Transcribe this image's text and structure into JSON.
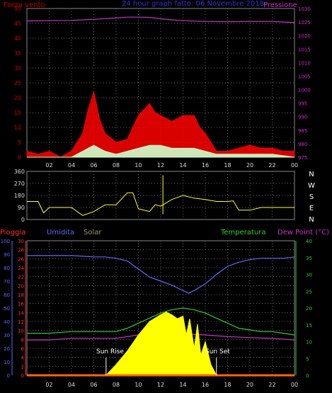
{
  "chart_data": [
    {
      "type": "line",
      "title": "24 hour graph fatto: 06 Novembre 2018",
      "left_axis_label": "Forza vento",
      "right_axis_label": "Pressione",
      "x_ticks": [
        "02",
        "04",
        "06",
        "08",
        "10",
        "12",
        "14",
        "16",
        "18",
        "20",
        "22",
        "00"
      ],
      "y_left_ticks": [
        0,
        5,
        10,
        15,
        20,
        25,
        30,
        35,
        40,
        45,
        50
      ],
      "y_left_range": [
        0,
        50
      ],
      "y_right_ticks": [
        975,
        980,
        985,
        990,
        995,
        1000,
        1005,
        1010,
        1015,
        1020,
        1025,
        1030
      ],
      "y_right_range": [
        975,
        1030
      ],
      "series": [
        {
          "name": "Pressione",
          "axis": "right",
          "color": "#cc33cc",
          "x": [
            0,
            2,
            4,
            6,
            8,
            9,
            10,
            11,
            12,
            13,
            14,
            16,
            18,
            20,
            22,
            24
          ],
          "values": [
            1025.4,
            1025.5,
            1025.6,
            1026.0,
            1026.5,
            1026.8,
            1026.8,
            1026.7,
            1026.2,
            1025.8,
            1025.5,
            1025.2,
            1025.1,
            1025.2,
            1025.2,
            1024.8
          ]
        },
        {
          "name": "Raffica",
          "axis": "left",
          "color": "#ff0000",
          "x": [
            0,
            1,
            2,
            3,
            4,
            5,
            5.5,
            6,
            6.5,
            7,
            8,
            9,
            10,
            10.5,
            11,
            11.5,
            12,
            13,
            14,
            15,
            15.5,
            16,
            17,
            18,
            19,
            20,
            21,
            22,
            23,
            24
          ],
          "values": [
            2,
            1,
            2,
            0,
            2,
            8,
            16,
            22,
            13,
            8,
            5,
            6,
            14,
            16,
            18,
            15,
            14,
            12,
            14,
            14,
            10,
            8,
            2,
            2,
            3,
            4,
            3,
            3,
            2,
            2
          ]
        },
        {
          "name": "Vento medio",
          "axis": "left",
          "color": "#ccffcc",
          "x": [
            0,
            2,
            4,
            5,
            6,
            6.5,
            7,
            8,
            9,
            10,
            11,
            12,
            13,
            14,
            15,
            16,
            17,
            18,
            20,
            22,
            24
          ],
          "values": [
            0,
            0,
            0,
            2,
            4,
            3,
            2,
            1,
            2,
            3,
            4,
            4,
            3,
            3,
            3,
            2,
            1,
            1,
            1,
            1,
            0
          ]
        }
      ]
    },
    {
      "type": "line",
      "title": "Direzione vento",
      "y_ticks": [
        0,
        90,
        180,
        270,
        360
      ],
      "y_range": [
        0,
        360
      ],
      "cardinal_labels": [
        "N",
        "W",
        "S",
        "E",
        "N"
      ],
      "x_ticks": [
        "02",
        "04",
        "06",
        "08",
        "10",
        "12",
        "14",
        "16",
        "18",
        "20",
        "22",
        "00"
      ],
      "series": [
        {
          "name": "Direzione",
          "color": "#ffff33",
          "x": [
            0,
            1,
            1.5,
            2,
            3,
            4,
            5,
            6,
            7,
            7.5,
            8,
            9,
            9.5,
            10,
            11,
            11.5,
            12,
            13,
            14,
            15,
            16,
            17,
            18,
            18.5,
            19,
            20,
            21,
            22,
            23,
            24
          ],
          "values": [
            135,
            135,
            50,
            90,
            90,
            90,
            30,
            60,
            110,
            110,
            110,
            200,
            200,
            80,
            60,
            110,
            100,
            150,
            180,
            160,
            150,
            135,
            135,
            140,
            70,
            70,
            90,
            90,
            90,
            90
          ]
        }
      ]
    },
    {
      "type": "line",
      "left_label_1": "Pioggia",
      "left_label_2": "Umidita",
      "left_label_3": "Solar",
      "right_label_1": "Temperatura",
      "right_label_2": "Dew Point (°C)",
      "annotation_sunrise": "Sun Rise",
      "annotation_sunset": "Sun Set",
      "x_ticks": [
        "02",
        "04",
        "06",
        "08",
        "10",
        "12",
        "14",
        "16",
        "18",
        "20",
        "22",
        "00"
      ],
      "humidity_ticks": [
        0,
        10,
        20,
        30,
        40,
        50,
        60,
        70,
        80,
        90,
        100
      ],
      "rain_ticks": [
        0,
        2,
        4,
        6,
        8,
        10,
        12,
        14,
        16,
        18,
        20,
        22,
        24,
        26,
        28,
        30
      ],
      "temp_ticks": [
        0,
        5,
        10,
        15,
        20,
        25,
        30,
        35,
        40
      ],
      "humidity_range": [
        0,
        100
      ],
      "rain_range": [
        0,
        30
      ],
      "temp_range": [
        0,
        40
      ],
      "sunrise_hour": 7.1,
      "sunset_hour": 17.0,
      "series": [
        {
          "name": "Umidita",
          "axis": "humidity",
          "color": "#6666ff",
          "x": [
            0,
            2,
            4,
            6,
            7,
            8,
            9,
            10,
            11,
            12,
            13,
            14,
            14.5,
            15,
            16,
            17,
            18,
            19,
            20,
            21,
            22,
            23,
            24
          ],
          "values": [
            89,
            89,
            89,
            88,
            88,
            87,
            85,
            79,
            73,
            70,
            67,
            63,
            61,
            63,
            68,
            75,
            81,
            84,
            86,
            87,
            87,
            87,
            88
          ]
        },
        {
          "name": "Temperatura",
          "axis": "temp",
          "color": "#33cc33",
          "x": [
            0,
            2,
            4,
            6,
            7,
            8,
            9,
            10,
            11,
            12,
            13,
            14,
            15,
            16,
            17,
            18,
            19,
            20,
            21,
            22,
            23,
            24
          ],
          "values": [
            12.5,
            12.5,
            13,
            13,
            13,
            13,
            14,
            15.5,
            17,
            18.5,
            19.5,
            20,
            19.5,
            18.5,
            17,
            15.5,
            14,
            13.5,
            13,
            13,
            12.5,
            12
          ]
        },
        {
          "name": "Dew Point",
          "axis": "temp",
          "color": "#cc33cc",
          "x": [
            0,
            2,
            4,
            6,
            8,
            10,
            12,
            14,
            16,
            18,
            20,
            22,
            24
          ],
          "values": [
            10.5,
            10.5,
            11,
            11,
            11,
            12,
            12.5,
            12.3,
            12,
            11.5,
            11.2,
            11,
            10.5
          ]
        },
        {
          "name": "Solar",
          "axis": "humidity",
          "color": "#ffff00",
          "x": [
            7.1,
            8,
            9,
            10,
            11,
            12,
            12.5,
            13,
            13.5,
            14,
            14.3,
            14.6,
            15,
            15.3,
            15.6,
            16,
            16.5,
            17
          ],
          "values": [
            0,
            8,
            18,
            30,
            40,
            45,
            47,
            45,
            42,
            44,
            30,
            42,
            20,
            38,
            15,
            25,
            8,
            0
          ]
        },
        {
          "name": "Pioggia",
          "axis": "rain",
          "color": "#ff0000",
          "x": [
            0,
            24
          ],
          "values": [
            0,
            0
          ]
        }
      ]
    }
  ]
}
